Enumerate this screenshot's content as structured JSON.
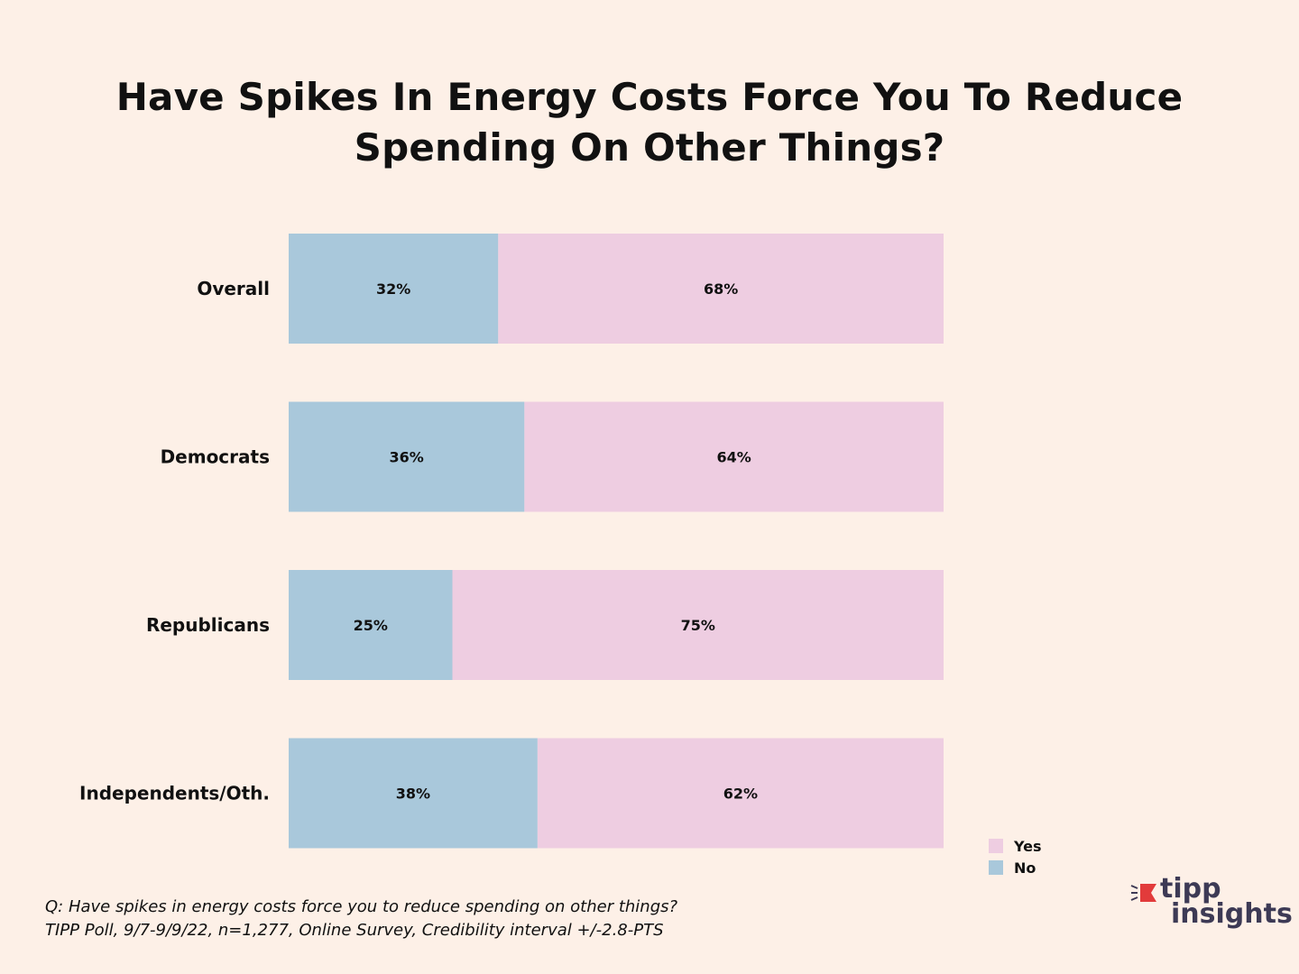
{
  "title": {
    "line1": "Have Spikes In Energy Costs Force You To Reduce",
    "line2": "Spending On Other Things?"
  },
  "colors": {
    "no": "#a9c8db",
    "yes": "#eecde1",
    "background": "#fdf0e7",
    "logo_text": "#3d3a55",
    "logo_accent": "#e23b3b"
  },
  "chart_data": {
    "type": "bar",
    "orientation": "horizontal",
    "stacked": true,
    "title": "Have Spikes In Energy Costs Force You To Reduce Spending On Other Things?",
    "categories": [
      "Overall",
      "Democrats",
      "Republicans",
      "Independents/Oth."
    ],
    "series": [
      {
        "name": "No",
        "values": [
          32,
          36,
          25,
          38
        ],
        "labels": [
          "32%",
          "36%",
          "25%",
          "38%"
        ]
      },
      {
        "name": "Yes",
        "values": [
          68,
          64,
          75,
          62
        ],
        "labels": [
          "68%",
          "64%",
          "75%",
          "62%"
        ]
      }
    ],
    "xlim": [
      0,
      100
    ],
    "grid": false,
    "legend": {
      "placement": "bottom-right",
      "entries": [
        "Yes",
        "No"
      ]
    }
  },
  "legend": {
    "yes_label": "Yes",
    "no_label": "No"
  },
  "footnote": {
    "question": "Q: Have spikes in energy costs force you to reduce spending on other things?",
    "source": "TIPP Poll, 9/7-9/9/22, n=1,277, Online Survey, Credibility interval +/-2.8-PTS"
  },
  "logo": {
    "word1": "tipp",
    "word2": "insights"
  }
}
